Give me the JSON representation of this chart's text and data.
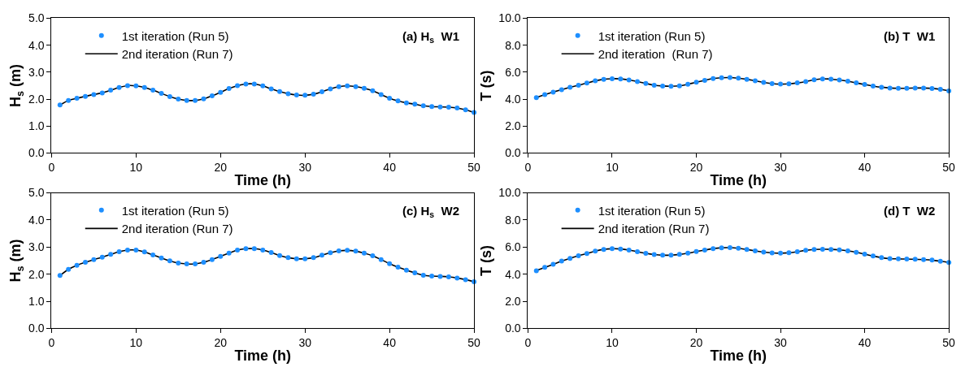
{
  "chart_data": [
    {
      "type": "line",
      "xlabel": "Time (h)",
      "ylabel": "H$_{s}$ (m)",
      "annotations": [
        "(a) H$_{s}$  W1"
      ],
      "xlim": [
        0,
        50
      ],
      "xticks": [
        0,
        10,
        20,
        30,
        40,
        50
      ],
      "ylim": [
        0,
        5
      ],
      "yticks": [
        {
          "value": 0,
          "label": "0.0"
        },
        {
          "value": 1,
          "label": "1.0"
        },
        {
          "value": 2,
          "label": "2.0"
        },
        {
          "value": 3,
          "label": "3.0"
        },
        {
          "value": 4,
          "label": "4.0"
        },
        {
          "value": 5,
          "label": "5.0"
        }
      ],
      "legend": "top left",
      "x": [
        1,
        2,
        3,
        4,
        5,
        6,
        7,
        8,
        9,
        10,
        11,
        12,
        13,
        14,
        15,
        16,
        17,
        18,
        19,
        20,
        21,
        22,
        23,
        24,
        25,
        26,
        27,
        28,
        29,
        30,
        31,
        32,
        33,
        34,
        35,
        36,
        37,
        38,
        39,
        40,
        41,
        42,
        43,
        44,
        45,
        46,
        47,
        48,
        49,
        50
      ],
      "series": [
        {
          "name": "1st iteration (Run 5)",
          "type": "scatter",
          "marker": "circle",
          "color": "#1e8fff",
          "values": [
            1.78,
            1.95,
            2.03,
            2.1,
            2.17,
            2.23,
            2.33,
            2.43,
            2.5,
            2.49,
            2.43,
            2.33,
            2.21,
            2.09,
            2.0,
            1.95,
            1.95,
            2.01,
            2.12,
            2.25,
            2.39,
            2.5,
            2.56,
            2.56,
            2.49,
            2.38,
            2.28,
            2.2,
            2.15,
            2.14,
            2.18,
            2.27,
            2.38,
            2.46,
            2.49,
            2.46,
            2.4,
            2.31,
            2.17,
            2.03,
            1.93,
            1.86,
            1.81,
            1.75,
            1.72,
            1.71,
            1.7,
            1.67,
            1.6,
            1.5
          ]
        },
        {
          "name": "2nd iteration (Run 7)",
          "line_style": "solid",
          "color": "#000000",
          "values": [
            1.78,
            1.95,
            2.03,
            2.1,
            2.17,
            2.23,
            2.33,
            2.43,
            2.5,
            2.49,
            2.43,
            2.33,
            2.21,
            2.09,
            2.0,
            1.95,
            1.95,
            2.01,
            2.12,
            2.25,
            2.39,
            2.5,
            2.56,
            2.56,
            2.49,
            2.38,
            2.28,
            2.2,
            2.15,
            2.14,
            2.18,
            2.27,
            2.38,
            2.46,
            2.49,
            2.46,
            2.4,
            2.31,
            2.17,
            2.03,
            1.93,
            1.86,
            1.81,
            1.75,
            1.72,
            1.71,
            1.7,
            1.67,
            1.6,
            1.5
          ]
        }
      ]
    },
    {
      "type": "line",
      "xlabel": "Time (h)",
      "ylabel": "T (s)",
      "annotations": [
        "(b) T  W1"
      ],
      "xlim": [
        0,
        50
      ],
      "xticks": [
        0,
        10,
        20,
        30,
        40,
        50
      ],
      "ylim": [
        0,
        10
      ],
      "yticks": [
        {
          "value": 0,
          "label": "0.0"
        },
        {
          "value": 2,
          "label": "2.0"
        },
        {
          "value": 4,
          "label": "4.0"
        },
        {
          "value": 6,
          "label": "6.0"
        },
        {
          "value": 8,
          "label": "8.0"
        },
        {
          "value": 10,
          "label": "10.0"
        }
      ],
      "legend": "top left",
      "x": [
        1,
        2,
        3,
        4,
        5,
        6,
        7,
        8,
        9,
        10,
        11,
        12,
        13,
        14,
        15,
        16,
        17,
        18,
        19,
        20,
        21,
        22,
        23,
        24,
        25,
        26,
        27,
        28,
        29,
        30,
        31,
        32,
        33,
        34,
        35,
        36,
        37,
        38,
        39,
        40,
        41,
        42,
        43,
        44,
        45,
        46,
        47,
        48,
        49,
        50
      ],
      "series": [
        {
          "name": "1st iteration (Run 5)",
          "type": "scatter",
          "marker": "circle",
          "color": "#1e8fff",
          "values": [
            4.1,
            4.33,
            4.52,
            4.7,
            4.87,
            5.02,
            5.19,
            5.35,
            5.47,
            5.51,
            5.5,
            5.42,
            5.3,
            5.16,
            5.03,
            4.97,
            4.95,
            4.98,
            5.1,
            5.25,
            5.39,
            5.52,
            5.58,
            5.6,
            5.55,
            5.47,
            5.35,
            5.24,
            5.15,
            5.11,
            5.13,
            5.2,
            5.3,
            5.43,
            5.5,
            5.48,
            5.42,
            5.33,
            5.2,
            5.08,
            4.97,
            4.88,
            4.82,
            4.8,
            4.8,
            4.82,
            4.82,
            4.79,
            4.72,
            4.6
          ]
        },
        {
          "name": "2nd iteration  (Run 7)",
          "line_style": "solid",
          "color": "#000000",
          "values": [
            4.1,
            4.33,
            4.52,
            4.7,
            4.87,
            5.02,
            5.19,
            5.35,
            5.47,
            5.51,
            5.5,
            5.42,
            5.3,
            5.16,
            5.03,
            4.97,
            4.95,
            4.98,
            5.1,
            5.25,
            5.39,
            5.52,
            5.58,
            5.6,
            5.55,
            5.47,
            5.35,
            5.24,
            5.15,
            5.11,
            5.13,
            5.2,
            5.3,
            5.43,
            5.5,
            5.48,
            5.42,
            5.33,
            5.2,
            5.08,
            4.97,
            4.88,
            4.82,
            4.8,
            4.8,
            4.82,
            4.82,
            4.79,
            4.72,
            4.6
          ]
        }
      ]
    },
    {
      "type": "line",
      "xlabel": "Time (h)",
      "ylabel": "H$_{s}$ (m)",
      "annotations": [
        "(c) H$_{s}$  W2"
      ],
      "xlim": [
        0,
        50
      ],
      "xticks": [
        0,
        10,
        20,
        30,
        40,
        50
      ],
      "ylim": [
        0,
        5
      ],
      "yticks": [
        {
          "value": 0,
          "label": "0.0"
        },
        {
          "value": 1,
          "label": "1.0"
        },
        {
          "value": 2,
          "label": "2.0"
        },
        {
          "value": 3,
          "label": "3.0"
        },
        {
          "value": 4,
          "label": "4.0"
        },
        {
          "value": 5,
          "label": "5.0"
        }
      ],
      "legend": "top left",
      "x": [
        1,
        2,
        3,
        4,
        5,
        6,
        7,
        8,
        9,
        10,
        11,
        12,
        13,
        14,
        15,
        16,
        17,
        18,
        19,
        20,
        21,
        22,
        23,
        24,
        25,
        26,
        27,
        28,
        29,
        30,
        31,
        32,
        33,
        34,
        35,
        36,
        37,
        38,
        39,
        40,
        41,
        42,
        43,
        44,
        45,
        46,
        47,
        48,
        49,
        50
      ],
      "series": [
        {
          "name": "1st iteration (Run 5)",
          "type": "scatter",
          "marker": "circle",
          "color": "#1e8fff",
          "values": [
            1.95,
            2.18,
            2.33,
            2.44,
            2.54,
            2.63,
            2.73,
            2.83,
            2.89,
            2.89,
            2.82,
            2.71,
            2.6,
            2.49,
            2.41,
            2.38,
            2.38,
            2.44,
            2.54,
            2.66,
            2.78,
            2.89,
            2.94,
            2.94,
            2.89,
            2.8,
            2.69,
            2.61,
            2.57,
            2.57,
            2.61,
            2.7,
            2.79,
            2.86,
            2.88,
            2.85,
            2.78,
            2.68,
            2.54,
            2.39,
            2.26,
            2.15,
            2.05,
            1.96,
            1.93,
            1.92,
            1.9,
            1.86,
            1.8,
            1.72
          ]
        },
        {
          "name": "2nd iteration (Run 7)",
          "line_style": "solid",
          "color": "#000000",
          "values": [
            1.95,
            2.18,
            2.33,
            2.44,
            2.54,
            2.63,
            2.73,
            2.83,
            2.89,
            2.89,
            2.82,
            2.71,
            2.6,
            2.49,
            2.41,
            2.38,
            2.38,
            2.44,
            2.54,
            2.66,
            2.78,
            2.89,
            2.94,
            2.94,
            2.89,
            2.8,
            2.69,
            2.61,
            2.57,
            2.57,
            2.61,
            2.7,
            2.79,
            2.86,
            2.88,
            2.85,
            2.78,
            2.68,
            2.54,
            2.39,
            2.26,
            2.15,
            2.05,
            1.96,
            1.93,
            1.92,
            1.9,
            1.86,
            1.8,
            1.72
          ]
        }
      ]
    },
    {
      "type": "line",
      "xlabel": "Time (h)",
      "ylabel": "T (s)",
      "annotations": [
        "(d) T  W2"
      ],
      "xlim": [
        0,
        50
      ],
      "xticks": [
        0,
        10,
        20,
        30,
        40,
        50
      ],
      "ylim": [
        0,
        10
      ],
      "yticks": [
        {
          "value": 0,
          "label": "0.0"
        },
        {
          "value": 2,
          "label": "2.0"
        },
        {
          "value": 4,
          "label": "4.0"
        },
        {
          "value": 6,
          "label": "6.0"
        },
        {
          "value": 8,
          "label": "8.0"
        },
        {
          "value": 10,
          "label": "10.0"
        }
      ],
      "legend": "top left",
      "x": [
        1,
        2,
        3,
        4,
        5,
        6,
        7,
        8,
        9,
        10,
        11,
        12,
        13,
        14,
        15,
        16,
        17,
        18,
        19,
        20,
        21,
        22,
        23,
        24,
        25,
        26,
        27,
        28,
        29,
        30,
        31,
        32,
        33,
        34,
        35,
        36,
        37,
        38,
        39,
        40,
        41,
        42,
        43,
        44,
        45,
        46,
        47,
        48,
        49,
        50
      ],
      "series": [
        {
          "name": "1st iteration (Run 5)",
          "type": "scatter",
          "marker": "circle",
          "color": "#1e8fff",
          "values": [
            4.25,
            4.5,
            4.73,
            4.97,
            5.17,
            5.36,
            5.52,
            5.7,
            5.83,
            5.88,
            5.86,
            5.78,
            5.66,
            5.54,
            5.45,
            5.4,
            5.41,
            5.46,
            5.55,
            5.67,
            5.78,
            5.89,
            5.95,
            5.96,
            5.91,
            5.82,
            5.72,
            5.63,
            5.57,
            5.55,
            5.58,
            5.66,
            5.76,
            5.82,
            5.84,
            5.83,
            5.79,
            5.72,
            5.62,
            5.48,
            5.34,
            5.22,
            5.15,
            5.13,
            5.12,
            5.1,
            5.08,
            5.04,
            4.96,
            4.87
          ]
        },
        {
          "name": "2nd iteration (Run 7)",
          "line_style": "solid",
          "color": "#000000",
          "values": [
            4.25,
            4.5,
            4.73,
            4.97,
            5.17,
            5.36,
            5.52,
            5.7,
            5.83,
            5.88,
            5.86,
            5.78,
            5.66,
            5.54,
            5.45,
            5.4,
            5.41,
            5.46,
            5.55,
            5.67,
            5.78,
            5.89,
            5.95,
            5.96,
            5.91,
            5.82,
            5.72,
            5.63,
            5.57,
            5.55,
            5.58,
            5.66,
            5.76,
            5.82,
            5.84,
            5.83,
            5.79,
            5.72,
            5.62,
            5.48,
            5.34,
            5.22,
            5.15,
            5.13,
            5.12,
            5.1,
            5.08,
            5.04,
            4.96,
            4.87
          ]
        }
      ]
    }
  ]
}
